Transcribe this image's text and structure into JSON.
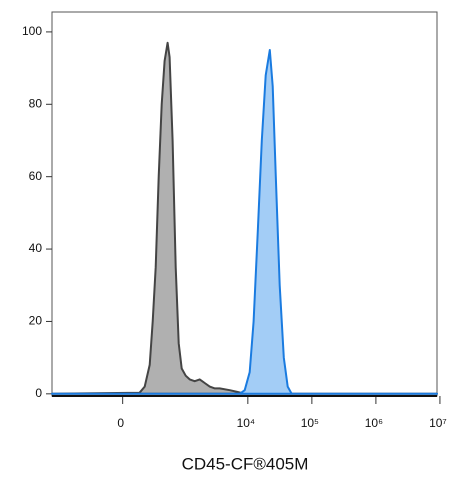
{
  "chart_data": {
    "type": "area",
    "x_label": "CD45-CF®405M",
    "series": [
      {
        "color": "#444444",
        "fill": "#b0b0b0",
        "x": [
          -1400,
          144,
          195,
          251,
          289,
          331,
          375,
          424,
          477,
          537,
          580,
          650,
          730,
          817,
          915,
          1059,
          1225,
          1472,
          1765,
          2116,
          2530,
          3040,
          3640,
          5220,
          6950,
          8920,
          9000000
        ],
        "values": [
          0,
          0.3,
          2,
          8,
          20,
          35,
          60,
          80,
          92,
          97,
          93,
          70,
          35,
          14,
          7,
          5,
          4,
          3.5,
          4,
          3,
          2,
          1.5,
          1.5,
          1,
          0.5,
          0,
          0
        ]
      },
      {
        "color": "#1a7be0",
        "fill": "#a3cdf6",
        "x": [
          -1400,
          7460,
          8920,
          10700,
          12300,
          14300,
          16500,
          19000,
          22000,
          24500,
          27300,
          31500,
          36400,
          42000,
          48400,
          9000000
        ],
        "values": [
          0,
          0,
          1,
          6,
          20,
          45,
          70,
          88,
          95,
          85,
          60,
          30,
          10,
          2,
          0,
          0
        ]
      }
    ],
    "xlim": [
      -1400,
      9000000
    ],
    "xticks": [
      0,
      {
        "value": 10000,
        "label": "10⁴"
      },
      {
        "value": 100000,
        "label": "10⁵"
      },
      {
        "value": 1000000,
        "label": "10⁶"
      },
      {
        "value": 10000000,
        "label": "10⁷"
      }
    ],
    "ylim": [
      -0.6,
      105.5
    ],
    "yticks": [
      0,
      20,
      40,
      60,
      80,
      100
    ]
  }
}
